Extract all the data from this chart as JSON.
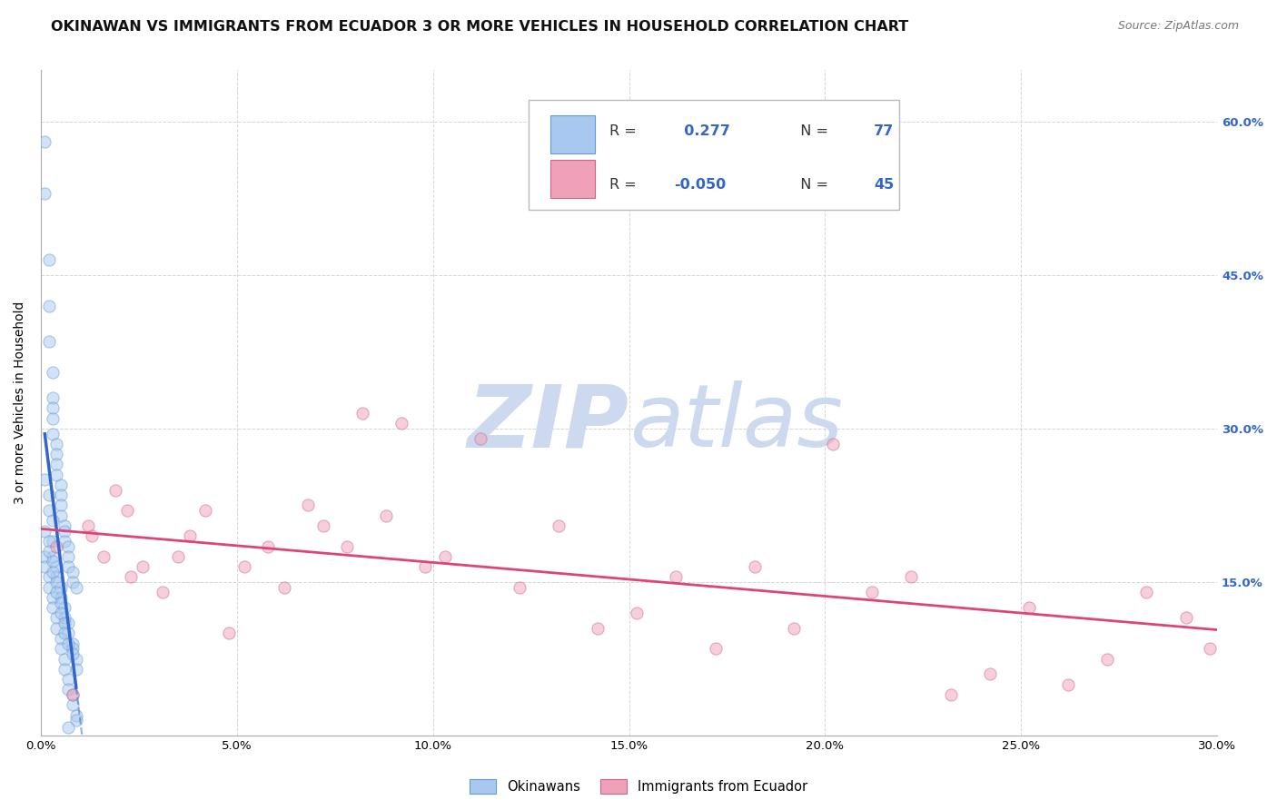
{
  "title": "OKINAWAN VS IMMIGRANTS FROM ECUADOR 3 OR MORE VEHICLES IN HOUSEHOLD CORRELATION CHART",
  "source": "Source: ZipAtlas.com",
  "ylabel": "3 or more Vehicles in Household",
  "xlim": [
    0.0,
    0.3
  ],
  "ylim": [
    0.0,
    0.65
  ],
  "xticks": [
    0.0,
    0.05,
    0.1,
    0.15,
    0.2,
    0.25,
    0.3
  ],
  "xtick_labels": [
    "0.0%",
    "5.0%",
    "10.0%",
    "15.0%",
    "20.0%",
    "25.0%",
    "30.0%"
  ],
  "yticks": [
    0.0,
    0.15,
    0.3,
    0.45,
    0.6
  ],
  "right_ytick_labels": [
    "",
    "15.0%",
    "30.0%",
    "45.0%",
    "60.0%"
  ],
  "blue_dot_color": "#a8c8f0",
  "blue_dot_edge": "#6699cc",
  "pink_dot_color": "#f0a0b8",
  "pink_dot_edge": "#cc6688",
  "blue_line_color": "#3366cc",
  "pink_line_color": "#dd4477",
  "grid_color": "#cccccc",
  "watermark_color": "#ccd9ee",
  "background_color": "#ffffff",
  "title_fontsize": 11.5,
  "axis_label_fontsize": 10,
  "tick_fontsize": 9.5,
  "right_ytick_color": "#3366cc",
  "legend_text_color": "#333333",
  "legend_value_color": "#3366cc",
  "dot_size": 90,
  "dot_alpha": 0.5,
  "blue_R": 0.277,
  "blue_N": 77,
  "pink_R": -0.05,
  "pink_N": 45,
  "blue_scatter_x": [
    0.001,
    0.001,
    0.002,
    0.002,
    0.002,
    0.003,
    0.003,
    0.003,
    0.003,
    0.003,
    0.004,
    0.004,
    0.004,
    0.004,
    0.005,
    0.005,
    0.005,
    0.005,
    0.006,
    0.006,
    0.006,
    0.007,
    0.007,
    0.007,
    0.008,
    0.008,
    0.009,
    0.001,
    0.002,
    0.002,
    0.003,
    0.003,
    0.003,
    0.004,
    0.004,
    0.005,
    0.005,
    0.006,
    0.006,
    0.007,
    0.007,
    0.008,
    0.008,
    0.009,
    0.009,
    0.001,
    0.001,
    0.002,
    0.002,
    0.003,
    0.003,
    0.004,
    0.004,
    0.005,
    0.005,
    0.006,
    0.006,
    0.007,
    0.007,
    0.008,
    0.008,
    0.009,
    0.009,
    0.001,
    0.002,
    0.002,
    0.003,
    0.003,
    0.004,
    0.004,
    0.005,
    0.005,
    0.006,
    0.006,
    0.007,
    0.007,
    0.008
  ],
  "blue_scatter_y": [
    0.58,
    0.53,
    0.465,
    0.42,
    0.385,
    0.355,
    0.33,
    0.32,
    0.31,
    0.295,
    0.285,
    0.275,
    0.265,
    0.255,
    0.245,
    0.235,
    0.225,
    0.215,
    0.205,
    0.2,
    0.19,
    0.185,
    0.175,
    0.165,
    0.16,
    0.15,
    0.145,
    0.25,
    0.235,
    0.22,
    0.21,
    0.19,
    0.175,
    0.165,
    0.155,
    0.145,
    0.135,
    0.125,
    0.115,
    0.11,
    0.1,
    0.09,
    0.085,
    0.075,
    0.065,
    0.175,
    0.165,
    0.155,
    0.145,
    0.135,
    0.125,
    0.115,
    0.105,
    0.095,
    0.085,
    0.075,
    0.065,
    0.055,
    0.045,
    0.04,
    0.03,
    0.02,
    0.015,
    0.2,
    0.19,
    0.18,
    0.17,
    0.16,
    0.15,
    0.14,
    0.13,
    0.12,
    0.11,
    0.1,
    0.09,
    0.008,
    0.08
  ],
  "pink_scatter_x": [
    0.004,
    0.008,
    0.012,
    0.016,
    0.013,
    0.019,
    0.023,
    0.026,
    0.022,
    0.031,
    0.035,
    0.038,
    0.042,
    0.048,
    0.052,
    0.058,
    0.062,
    0.068,
    0.072,
    0.078,
    0.082,
    0.088,
    0.092,
    0.098,
    0.103,
    0.112,
    0.122,
    0.132,
    0.142,
    0.152,
    0.162,
    0.172,
    0.182,
    0.192,
    0.202,
    0.212,
    0.222,
    0.232,
    0.242,
    0.252,
    0.262,
    0.272,
    0.282,
    0.292,
    0.298
  ],
  "pink_scatter_y": [
    0.185,
    0.04,
    0.205,
    0.175,
    0.195,
    0.24,
    0.155,
    0.165,
    0.22,
    0.14,
    0.175,
    0.195,
    0.22,
    0.1,
    0.165,
    0.185,
    0.145,
    0.225,
    0.205,
    0.185,
    0.315,
    0.215,
    0.305,
    0.165,
    0.175,
    0.29,
    0.145,
    0.205,
    0.105,
    0.12,
    0.155,
    0.085,
    0.165,
    0.105,
    0.285,
    0.14,
    0.155,
    0.04,
    0.06,
    0.125,
    0.05,
    0.075,
    0.14,
    0.115,
    0.085
  ]
}
